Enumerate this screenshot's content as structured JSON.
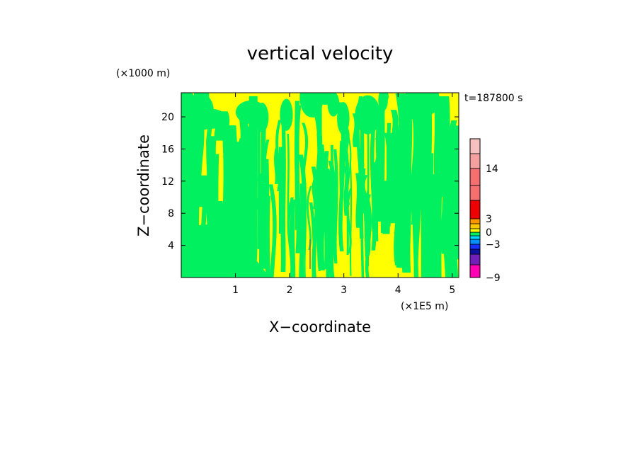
{
  "chart_data": {
    "type": "heatmap",
    "title": "vertical velocity",
    "xlabel": "X−coordinate",
    "ylabel": "Z−coordinate",
    "x_unit": "(×1E5 m)",
    "y_unit": "(×1000 m)",
    "time_label": "t=187800 s",
    "xlim": [
      0,
      5.12
    ],
    "ylim": [
      0,
      23
    ],
    "x_ticks": [
      {
        "value": 1,
        "label": "1"
      },
      {
        "value": 2,
        "label": "2"
      },
      {
        "value": 3,
        "label": "3"
      },
      {
        "value": 4,
        "label": "4"
      },
      {
        "value": 5,
        "label": "5"
      }
    ],
    "y_ticks": [
      {
        "value": 4,
        "label": "4"
      },
      {
        "value": 8,
        "label": "8"
      },
      {
        "value": 12,
        "label": "12"
      },
      {
        "value": 16,
        "label": "16"
      },
      {
        "value": 20,
        "label": "20"
      }
    ],
    "field_colors": {
      "negative_small": "#00f060",
      "positive_small": "#ffff00"
    },
    "colorbar": {
      "min": -9,
      "max": 20,
      "bands": [
        {
          "from": -9,
          "to": -7,
          "color": "#ff00b4"
        },
        {
          "from": -7,
          "to": -5,
          "color": "#7020b8"
        },
        {
          "from": -5,
          "to": -4,
          "color": "#1010a0"
        },
        {
          "from": -4,
          "to": -3,
          "color": "#1830ff"
        },
        {
          "from": -3,
          "to": -2,
          "color": "#0090ff"
        },
        {
          "from": -2,
          "to": -1,
          "color": "#00d8ff"
        },
        {
          "from": -1,
          "to": 0,
          "color": "#00f060"
        },
        {
          "from": 0,
          "to": 1,
          "color": "#ffff00"
        },
        {
          "from": 1,
          "to": 2,
          "color": "#ffc800"
        },
        {
          "from": 2,
          "to": 3,
          "color": "#ff9600"
        },
        {
          "from": 3,
          "to": 5,
          "color": "#ee0000"
        },
        {
          "from": 5,
          "to": 9,
          "color": "#f47070"
        },
        {
          "from": 9,
          "to": 14,
          "color": "#f47070"
        },
        {
          "from": 14,
          "to": 17,
          "color": "#f4a0a0"
        },
        {
          "from": 17,
          "to": 20,
          "color": "#f4c0c0"
        }
      ],
      "tick_labels": [
        {
          "value": 14,
          "label": "14"
        },
        {
          "value": 3,
          "label": "3"
        },
        {
          "value": 0,
          "label": "0"
        },
        {
          "value": -3,
          "label": "−3"
        },
        {
          "value": -9,
          "label": "−9"
        }
      ]
    }
  }
}
